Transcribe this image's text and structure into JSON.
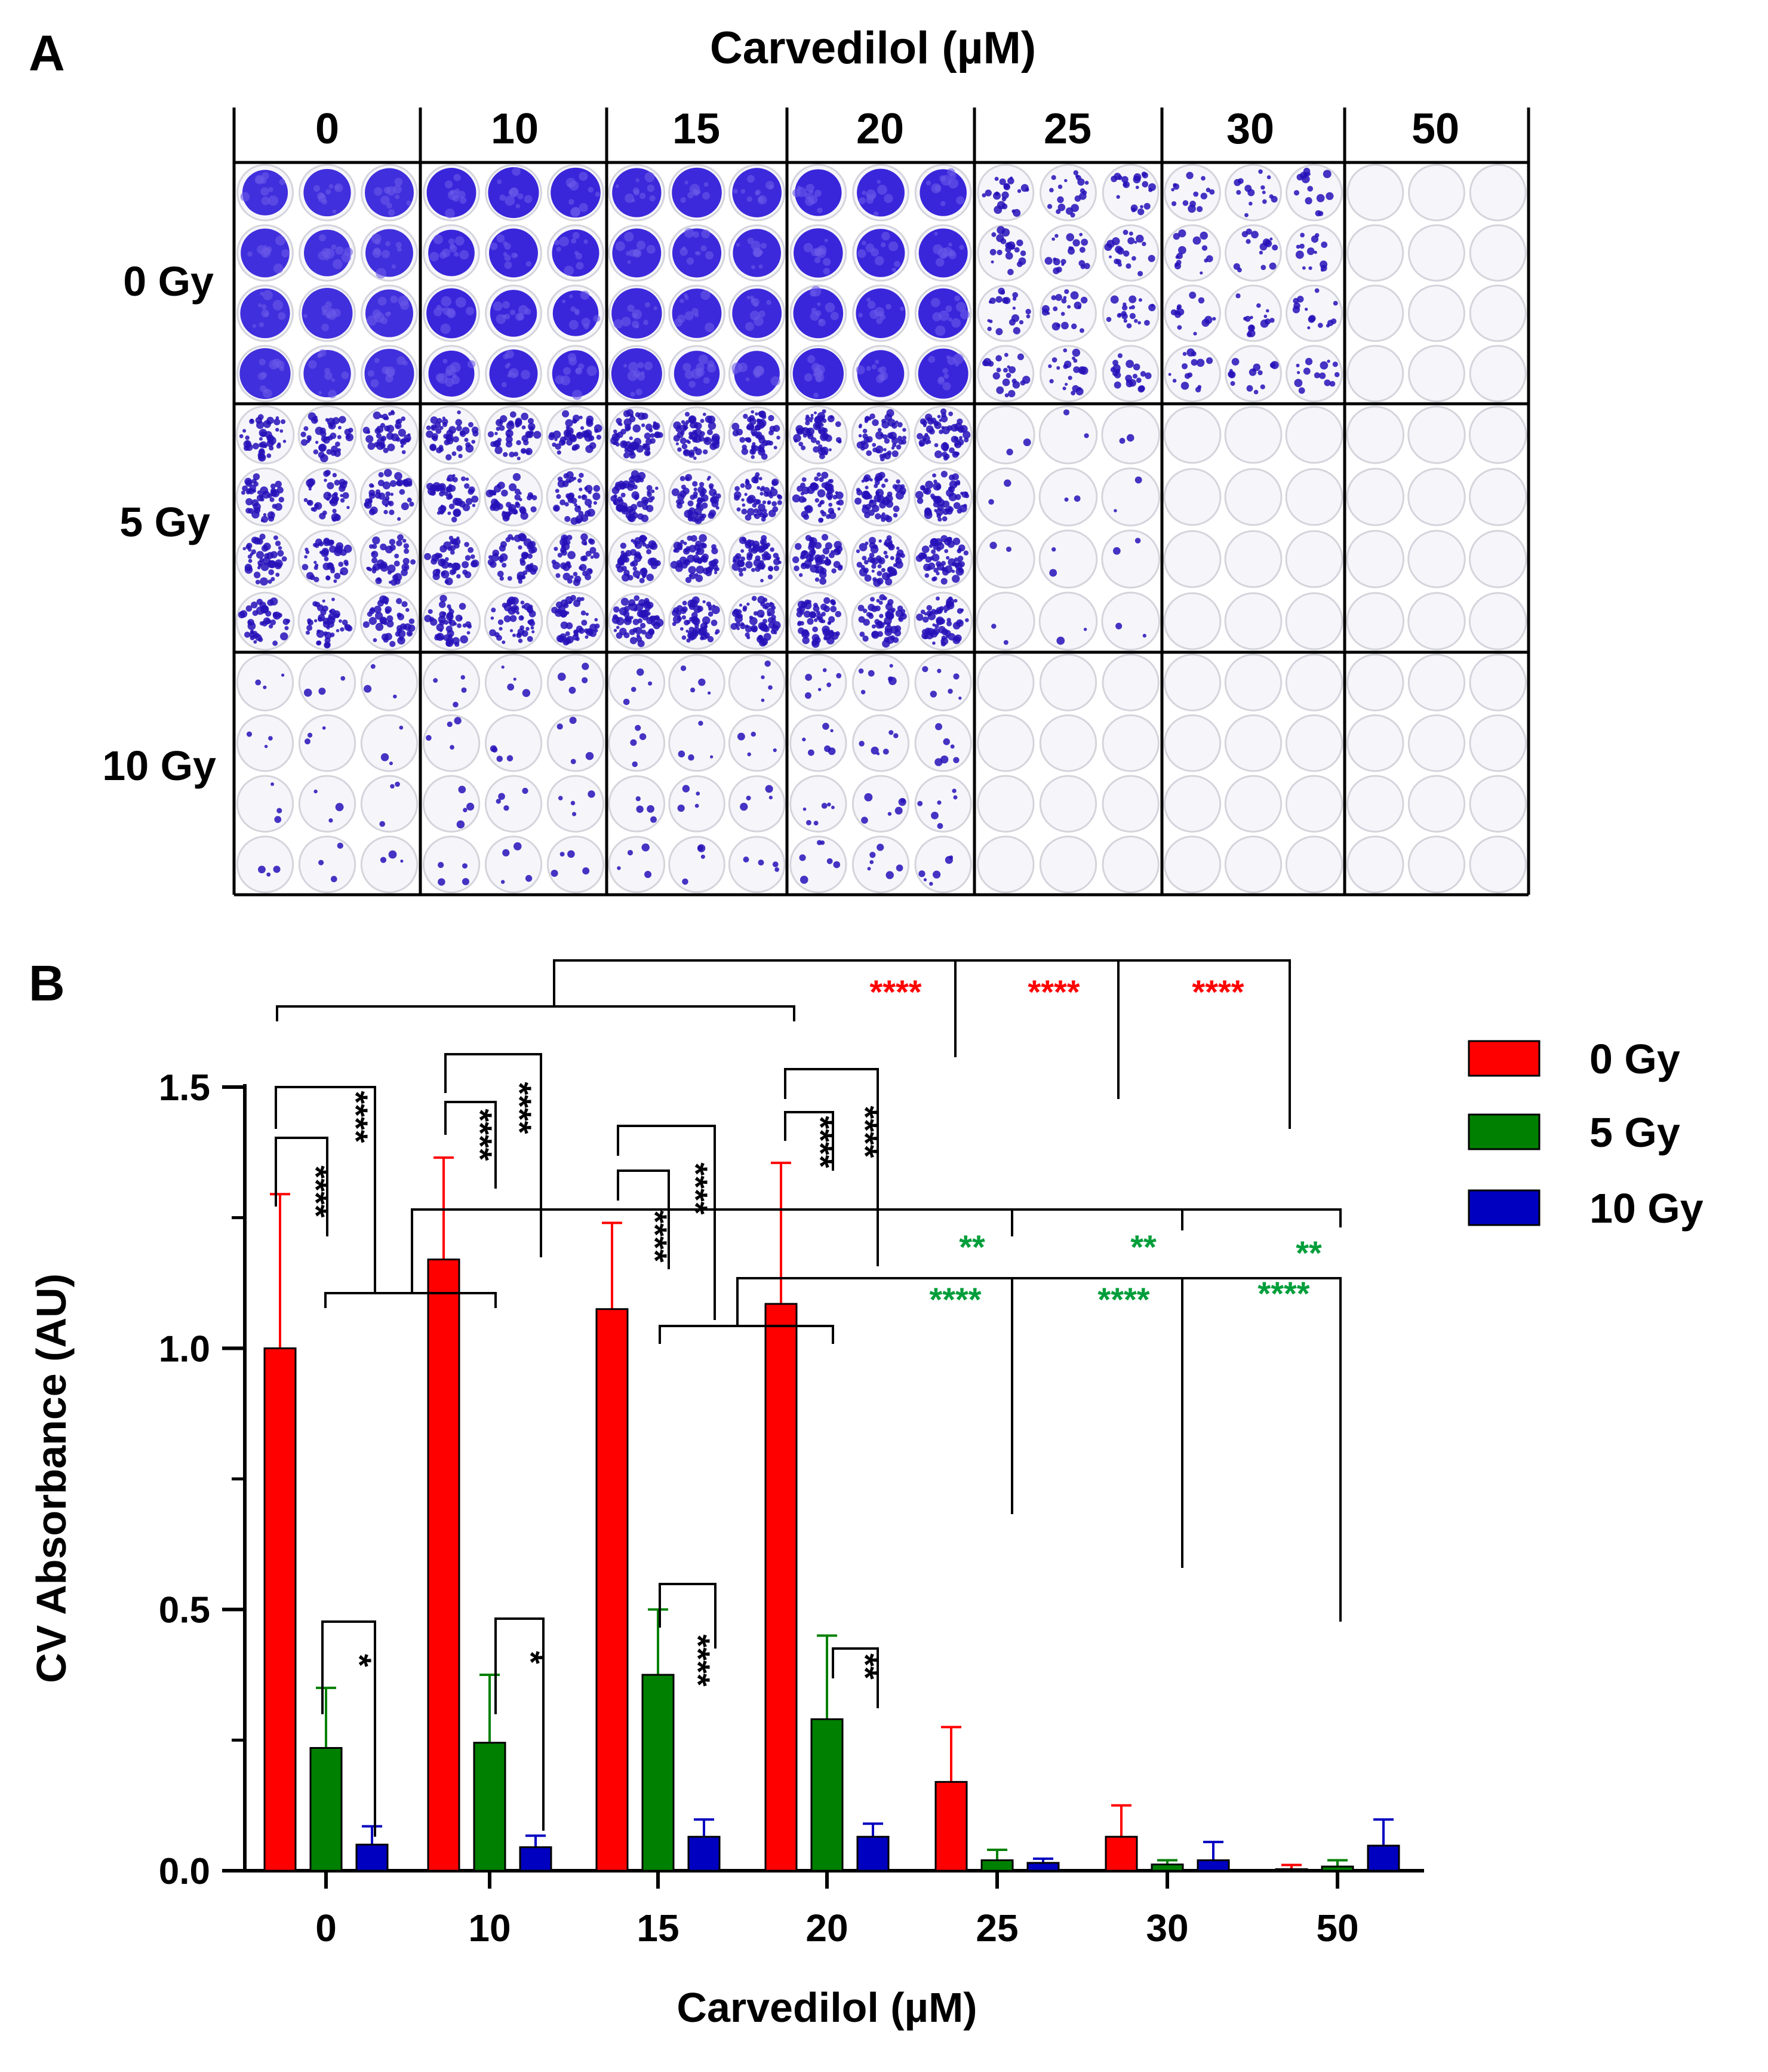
{
  "panel_a": {
    "label": "A",
    "title": "Carvedilol (µM)",
    "concentrations": [
      "0",
      "10",
      "15",
      "20",
      "25",
      "30",
      "50"
    ],
    "doses": [
      "0 Gy",
      "5 Gy",
      "10 Gy"
    ],
    "well_colors": {
      "stain": "#2a16d8",
      "stain_dark": "#2610b8",
      "stain_light": "#6b5ae8",
      "well_rim": "#d4d4dc",
      "well_bg": "#f6f6fa"
    },
    "well_density": [
      [
        0.85,
        0.95,
        0.92,
        0.95,
        0.14,
        0.1,
        0.0
      ],
      [
        0.3,
        0.32,
        0.42,
        0.4,
        0.015,
        0.0,
        0.0
      ],
      [
        0.02,
        0.025,
        0.03,
        0.04,
        0.0,
        0.0,
        0.0
      ]
    ]
  },
  "chart_data": {
    "type": "bar",
    "panel_label": "B",
    "categories": [
      "0",
      "10",
      "15",
      "20",
      "25",
      "30",
      "50"
    ],
    "xlabel": "Carvedilol (µM)",
    "ylabel": "CV Absorbance (AU)",
    "ylim": [
      0,
      1.5
    ],
    "yticks": [
      "0.0",
      "0.5",
      "1.0",
      "1.5"
    ],
    "ytick_values": [
      0,
      0.5,
      1.0,
      1.5
    ],
    "grid": false,
    "legend_position": "top-right",
    "series": [
      {
        "name": "0 Gy",
        "color": "#ff0000",
        "values": [
          1.0,
          1.17,
          1.075,
          1.085,
          0.17,
          0.065,
          0.003
        ],
        "errors": [
          0.295,
          0.195,
          0.165,
          0.27,
          0.105,
          0.06,
          0.008
        ]
      },
      {
        "name": "5 Gy",
        "color": "#008000",
        "values": [
          0.235,
          0.245,
          0.375,
          0.29,
          0.02,
          0.012,
          0.008
        ],
        "errors": [
          0.115,
          0.13,
          0.125,
          0.16,
          0.02,
          0.008,
          0.012
        ]
      },
      {
        "name": "10 Gy",
        "color": "#0000c0",
        "values": [
          0.05,
          0.045,
          0.065,
          0.065,
          0.015,
          0.02,
          0.048
        ],
        "errors": [
          0.035,
          0.022,
          0.033,
          0.025,
          0.008,
          0.035,
          0.05
        ]
      }
    ],
    "annotations": {
      "within_group": [
        {
          "group": "0",
          "pair": [
            "0 Gy",
            "5 Gy"
          ],
          "label": "****"
        },
        {
          "group": "0",
          "pair": [
            "0 Gy",
            "10 Gy"
          ],
          "label": "****"
        },
        {
          "group": "0",
          "pair": [
            "5 Gy",
            "10 Gy"
          ],
          "label": "*"
        },
        {
          "group": "10",
          "pair": [
            "0 Gy",
            "5 Gy"
          ],
          "label": "****"
        },
        {
          "group": "10",
          "pair": [
            "0 Gy",
            "10 Gy"
          ],
          "label": "****"
        },
        {
          "group": "10",
          "pair": [
            "5 Gy",
            "10 Gy"
          ],
          "label": "*"
        },
        {
          "group": "15",
          "pair": [
            "0 Gy",
            "5 Gy"
          ],
          "label": "****"
        },
        {
          "group": "15",
          "pair": [
            "0 Gy",
            "10 Gy"
          ],
          "label": "****"
        },
        {
          "group": "15",
          "pair": [
            "5 Gy",
            "10 Gy"
          ],
          "label": "****"
        },
        {
          "group": "20",
          "pair": [
            "0 Gy",
            "5 Gy"
          ],
          "label": "****"
        },
        {
          "group": "20",
          "pair": [
            "0 Gy",
            "10 Gy"
          ],
          "label": "****"
        },
        {
          "group": "20",
          "pair": [
            "5 Gy",
            "10 Gy"
          ],
          "label": "**"
        }
      ],
      "between_groups": [
        {
          "color": "#ff0000",
          "labels": [
            "****",
            "****",
            "****"
          ]
        },
        {
          "color": "#009e3a",
          "labels": [
            "**",
            "**",
            "**"
          ]
        },
        {
          "color": "#009e3a",
          "labels": [
            "****",
            "****",
            "****"
          ]
        }
      ]
    }
  }
}
